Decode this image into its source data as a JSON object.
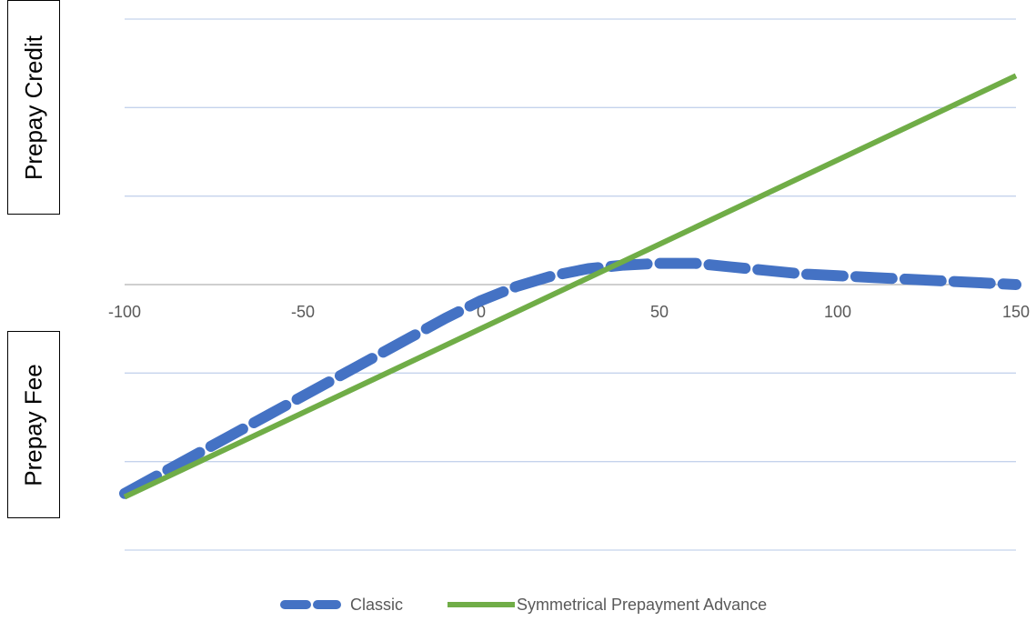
{
  "side_labels": {
    "upper": "Prepay Credit",
    "lower": "Prepay Fee"
  },
  "chart_data": {
    "type": "line",
    "title": "",
    "xlabel": "",
    "ylabel": "",
    "xlim": [
      -100,
      150
    ],
    "ylim": [
      -150,
      150
    ],
    "y_gridlines": [
      -150,
      -100,
      -50,
      50,
      100,
      150
    ],
    "x_ticks": [
      -100,
      -50,
      0,
      50,
      100,
      150
    ],
    "x_tick_labels": [
      "-100",
      "-50",
      "0",
      "50",
      "100",
      "150"
    ],
    "grid": true,
    "legend_position": "bottom",
    "series": [
      {
        "name": "Classic",
        "color": "#4472C4",
        "style": "dashed",
        "x": [
          -100,
          -90,
          -80,
          -70,
          -60,
          -50,
          -40,
          -30,
          -20,
          -10,
          0,
          10,
          20,
          30,
          40,
          50,
          60,
          70,
          80,
          90,
          100,
          110,
          120,
          130,
          140,
          150
        ],
        "y": [
          -118,
          -107,
          -96,
          -85,
          -74,
          -63,
          -52,
          -41,
          -30,
          -19,
          -9,
          -1,
          5,
          9,
          11,
          12,
          12,
          10,
          8,
          6,
          5,
          4,
          3,
          2,
          1,
          0
        ]
      },
      {
        "name": "Symmetrical Prepayment Advance",
        "color": "#70AD47",
        "style": "solid",
        "x": [
          -100,
          150
        ],
        "y": [
          -120,
          118
        ]
      }
    ]
  }
}
